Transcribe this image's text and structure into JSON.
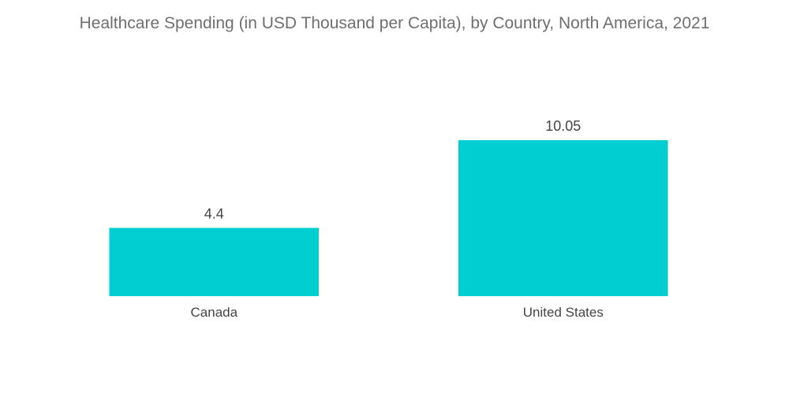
{
  "chart_data": {
    "type": "bar",
    "title": "Healthcare Spending (in USD Thousand per Capita), by Country, North America, 2021",
    "categories": [
      "Canada",
      "United States"
    ],
    "values": [
      4.4,
      10.05
    ],
    "value_labels": [
      "4.4",
      "10.05"
    ],
    "xlabel": "",
    "ylabel": "",
    "ylim": [
      0,
      10.05
    ],
    "grid": false,
    "legend": "none",
    "bar_color": "#00CED1"
  }
}
